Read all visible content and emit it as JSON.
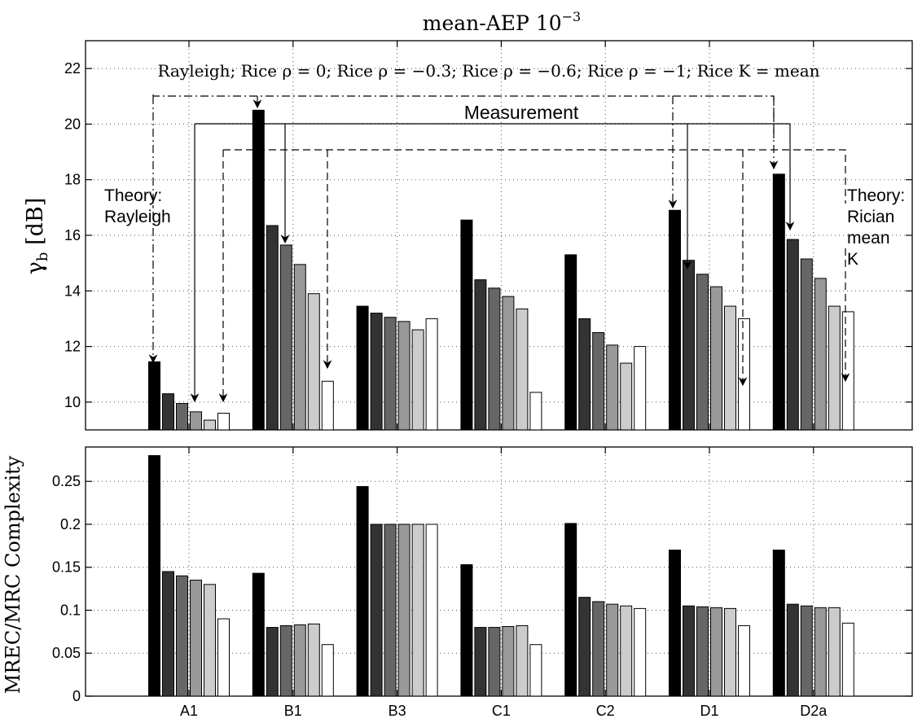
{
  "title_text": "mean-AEP ",
  "title_exp": "−3",
  "title_base": "10",
  "legend_text": "Rayleigh; Rice ρ = 0; Rice ρ = −0.3; Rice ρ = −0.6; Rice ρ = −1; Rice K = mean",
  "colors": {
    "background": "#ffffff",
    "axis": "#000000",
    "grid": "#555555",
    "bar_fills": [
      "#000000",
      "#333333",
      "#666666",
      "#999999",
      "#cccccc",
      "#ffffff"
    ]
  },
  "annotations": {
    "measurement": "Measurement",
    "theory_rayleigh": [
      "Theory:",
      "Rayleigh"
    ],
    "theory_rician": [
      "Theory:",
      "Rician",
      "mean",
      "K"
    ]
  },
  "chart_data": [
    {
      "type": "bar",
      "ylabel_sym": "γ",
      "ylabel_sub": "b",
      "ylabel_unit": "[dB]",
      "ylim": [
        9,
        23
      ],
      "yticks": [
        10,
        12,
        14,
        16,
        18,
        20,
        22
      ],
      "grid": true,
      "categories": [
        "A1",
        "B1",
        "B3",
        "C1",
        "C2",
        "D1",
        "D2a"
      ],
      "series": [
        {
          "values": [
            11.45,
            20.5,
            13.45,
            16.55,
            15.3,
            16.9,
            18.2
          ]
        },
        {
          "values": [
            10.3,
            16.35,
            13.2,
            14.4,
            13.0,
            15.1,
            15.85
          ]
        },
        {
          "values": [
            9.95,
            15.65,
            13.05,
            14.1,
            12.5,
            14.6,
            15.15
          ]
        },
        {
          "values": [
            9.65,
            14.95,
            12.9,
            13.8,
            12.05,
            14.15,
            14.45
          ]
        },
        {
          "values": [
            9.35,
            13.9,
            12.6,
            13.35,
            11.4,
            13.45,
            13.45
          ]
        },
        {
          "values": [
            9.6,
            10.75,
            13.0,
            10.35,
            12.0,
            13.0,
            13.25
          ]
        }
      ]
    },
    {
      "type": "bar",
      "ylabel": "MREC/MRC Complexity",
      "ylim": [
        0,
        0.29
      ],
      "yticks": [
        0,
        0.05,
        0.1,
        0.15,
        0.2,
        0.25
      ],
      "ytick_labels": [
        "0",
        "0.05",
        "0.1",
        "0.15",
        "0.2",
        "0.25"
      ],
      "grid": true,
      "categories": [
        "A1",
        "B1",
        "B3",
        "C1",
        "C2",
        "D1",
        "D2a"
      ],
      "series": [
        {
          "values": [
            0.28,
            0.143,
            0.244,
            0.153,
            0.201,
            0.17,
            0.17
          ]
        },
        {
          "values": [
            0.145,
            0.08,
            0.2,
            0.08,
            0.115,
            0.105,
            0.107
          ]
        },
        {
          "values": [
            0.14,
            0.082,
            0.2,
            0.08,
            0.11,
            0.104,
            0.105
          ]
        },
        {
          "values": [
            0.135,
            0.083,
            0.2,
            0.081,
            0.107,
            0.103,
            0.103
          ]
        },
        {
          "values": [
            0.13,
            0.084,
            0.2,
            0.082,
            0.105,
            0.102,
            0.103
          ]
        },
        {
          "values": [
            0.09,
            0.06,
            0.2,
            0.06,
            0.102,
            0.082,
            0.085
          ]
        }
      ]
    }
  ]
}
